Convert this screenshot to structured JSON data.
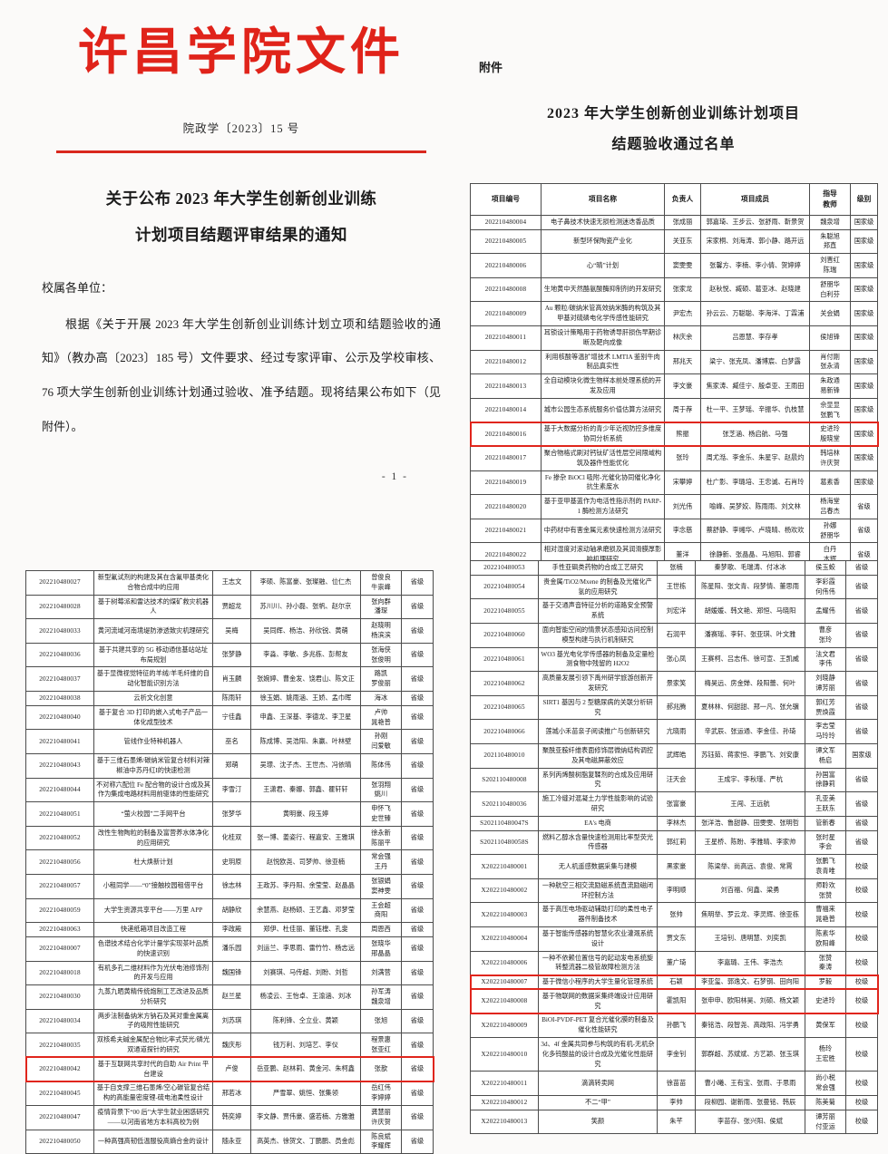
{
  "page1": {
    "brand": "许昌学院文件",
    "doc_number": "院政学〔2023〕15 号",
    "title_line1": "关于公布 2023 年大学生创新创业训练",
    "title_line2": "计划项目结题评审结果的通知",
    "salutation": "校属各单位：",
    "body": "根据《关于开展 2023 年大学生创新创业训练计划立项和结题验收的通知》（教办高〔2023〕185 号）文件要求、经过专家评审、公示及学校审核、76 项大学生创新创业训练计划通过验收、准予结题。现将结果公布如下（见附件）。",
    "page_number": "- 1 -"
  },
  "page2": {
    "attach_label": "附件",
    "title_line1": "2023 年大学生创新创业训练计划项目",
    "title_line2": "结题验收通过名单",
    "columns": {
      "id": "项目编号",
      "name": "项目名称",
      "leader": "负责人",
      "members": "项目成员",
      "teacher": "指导\n教师",
      "level": "级别"
    },
    "rows": [
      {
        "id": "202210480004",
        "name": "电子鼻技术快速无损检测迷迭香品质",
        "leader": "张成丽",
        "members": "郭嘉琦、王步云、张舒雨、靳景贺",
        "teacher": "魏泉增",
        "level": "国家级"
      },
      {
        "id": "202210480005",
        "name": "新型环保陶瓷产业化",
        "leader": "关亚东",
        "members": "宋家桐、刘海涛、郭小静、路开远",
        "teacher": "朱聪旭\n郑直",
        "level": "国家级"
      },
      {
        "id": "202210480006",
        "name": "心“晴”计划",
        "leader": "窦雯雯",
        "members": "张馨方、李楠、李小倩、贺婷婷",
        "teacher": "刘晋红\n陈瑞",
        "level": "国家级"
      },
      {
        "id": "202210480008",
        "name": "生地黄中天然酪氨酸酶抑制剂的开发研究",
        "leader": "张家龙",
        "members": "赵秋悦、臧硕、葛亚冰、赵晓建",
        "teacher": "舒朋华\n白利芬",
        "level": "国家级"
      },
      {
        "id": "202210480009",
        "name": "Au 颗粒/碳纳米管高效纳米酶的构筑及其甲基对硫磷电化学传感性能研究",
        "leader": "尹宏杰",
        "members": "孙云云、万聪聪、李海洋、丁霖浦",
        "teacher": "关会娟",
        "level": "国家级"
      },
      {
        "id": "202210480011",
        "name": "耳锁设计策略用于药物诱导肝损伤早期诊断及靶向成像",
        "leader": "林庆余",
        "members": "吕恩慧、李存孝",
        "teacher": "侯旭锋",
        "level": "国家级"
      },
      {
        "id": "202210480012",
        "name": "利用核酸等温扩增技术 LMTIA 鉴别牛肉制品真实性",
        "leader": "邢兆天",
        "members": "梁宁、张克凤、潘博宸、白梦露",
        "teacher": "肖付刚\n张永清",
        "level": "国家级"
      },
      {
        "id": "202210480013",
        "name": "全自动模块化微生物样本前处理系统的开发及应用",
        "leader": "李文豪",
        "members": "焦家涛、臧佳宁、殷卓亚、王雨田",
        "teacher": "朱政通\n易新锋",
        "level": "国家级"
      },
      {
        "id": "202210480014",
        "name": "城市公园生态系统服务价值估算方法研究",
        "leader": "周于荐",
        "members": "杜一平、王梦瑶、辛振华、仇枝慧",
        "teacher": "佘显显\n张鹏飞",
        "level": "国家级"
      },
      {
        "id": "202210480016",
        "name": "基于大数据分析的青少年近视防控多维度协同分析系统",
        "leader": "熊振",
        "members": "张芝涵、杨启航、马强",
        "teacher": "史进玲\n殷晓堂",
        "level": "国家级",
        "highlight": true
      },
      {
        "id": "202210480017",
        "name": "聚合物格式刷对钙钛矿活性层空间限域构筑及器件性能优化",
        "leader": "张玲",
        "members": "周尤湉、李金乐、朱星宇、赵晨灼",
        "teacher": "韩培林\n许庆贺",
        "level": "国家级"
      },
      {
        "id": "202210480019",
        "name": "Fe 掺杂 BiOCl 吸附-光催化协同催化净化抗生素废水",
        "leader": "宋攀婷",
        "members": "杜广影、李璐培、王忠诚、石肖玲",
        "teacher": "葛素香",
        "level": "国家级"
      },
      {
        "id": "202210480020",
        "name": "基于亚甲基蓝作为电活性指示剂的 PARP-1 酶检测方法研究",
        "leader": "刘光伟",
        "members": "喻峰、吴梦姣、陈雨雨、刘文林",
        "teacher": "杨海堂\n吕春杰",
        "level": "省级"
      },
      {
        "id": "202210480021",
        "name": "中药材中有害金属元素快速检测方法研究",
        "leader": "李念慈",
        "members": "蔡舒静、李缃华、卢晓晴、杨欢欢",
        "teacher": "孙娜\n舒朋华",
        "level": "省级"
      },
      {
        "id": "202210480022",
        "name": "相对湿度对滚动轴承磨损及其润滑膜厚影响机理研究",
        "leader": "董洋",
        "members": "徐静新、张晶晶、马旭阳、郭睿",
        "teacher": "白丹\n本辉",
        "level": "省级"
      },
      {
        "id": "202210480023",
        "name": "一种具有联网大数据分析功能的智慧井盖",
        "leader": "沈自豪",
        "members": "张凯洋、张权、贾义东、刘笑岩",
        "teacher": "高画\n侯光熙",
        "level": "省级"
      },
      {
        "id": "202210480026",
        "name": "内建电场作用下的二维异质结复合材料构筑及对多硫化锂吸附-催化作用研究",
        "leader": "尹佳珂",
        "members": "闫永博、魏佳慧、孙朗、杨佳瑶",
        "teacher": "李浩",
        "level": "省级"
      }
    ]
  },
  "page3": {
    "rows": [
      {
        "id": "202210480027",
        "name": "新型氟试剂的构建及其在含氟甲基类化合物合成中的应用",
        "leader": "王志文",
        "members": "李硕、陈富豪、张璨融、位仁杰",
        "teacher": "曾俊良\n牛崇峰",
        "level": "省级"
      },
      {
        "id": "202210480028",
        "name": "基于树莓派和雷达技术的煤矿救灾机器人",
        "leader": "贾超龙",
        "members": "苏川川、孙小磊、张帆、赵尔京",
        "teacher": "张向群\n潘琛",
        "level": "省级"
      },
      {
        "id": "202210480033",
        "name": "黄河流域河南境堤防渗透致灾机理研究",
        "leader": "吴梅",
        "members": "吴同辉、杨洁、孙欣锐、黄萌",
        "teacher": "赵晓明\n杨滨滨",
        "level": "省级"
      },
      {
        "id": "202210480036",
        "name": "基于共建共享的 5G 移动通信基站站址布局规划",
        "leader": "张梦静",
        "members": "李淼、李敏、多兆栋、彭帮友",
        "teacher": "张海侠\n张俊明",
        "level": "省级"
      },
      {
        "id": "202210480037",
        "name": "基于显微视觉特征的羊绒/羊毛纤维的自动化智能识别方法",
        "leader": "肖玉麟",
        "members": "张婉婷、曹金发、饶君山、陈文正",
        "teacher": "路凯\n罗俊丽",
        "level": "省级"
      },
      {
        "id": "202210480038",
        "name": "云析文化创意",
        "leader": "陈雨轩",
        "members": "徐玉娟、姚雨涵、王娇、孟巾晖",
        "teacher": "海冰",
        "level": "省级"
      },
      {
        "id": "202210480040",
        "name": "基于复合 3D 打印的嵌入式电子产品一体化成型技术",
        "leader": "宁佳鑫",
        "members": "申鑫、王深基、李德龙、李卫星",
        "teacher": "卢帅\n晁艳普",
        "level": "省级"
      },
      {
        "id": "202210480041",
        "name": "管线作业特种机器人",
        "leader": "巫名",
        "members": "陈成博、吴浩阳、朱赢、叶林壁",
        "teacher": "孙刚\n闫爱敏",
        "level": "省级"
      },
      {
        "id": "202210480043",
        "name": "基于三维石墨烯/碳纳米管复合材料对辣椒油中苏丹红I的快速检测",
        "leader": "郑萌",
        "members": "吴璟、沈子杰、王世杰、冯依晴",
        "teacher": "陈体伟",
        "level": "省级"
      },
      {
        "id": "202210480044",
        "name": "不对称六配位 Fe 配合物的设计合成及其作为集成电路材料用前驱体的性能研究",
        "leader": "李雪汀",
        "members": "王潇君、秦娜、郭鑫、瞿轩轩",
        "teacher": "张羽翔\n姚川",
        "level": "省级"
      },
      {
        "id": "202210480051",
        "name": "“萤火校园”二手网平台",
        "leader": "张梦华",
        "members": "黄明豪、段玉婷",
        "teacher": "申怀飞\n史世臻",
        "level": "省级"
      },
      {
        "id": "202210480052",
        "name": "改性生物陶粒的制备及富营养水体净化的应用研究",
        "leader": "化桂双",
        "members": "张一博、姜姿行、程嘉安、王雅琪",
        "teacher": "徐永新\n陈丽平",
        "level": "省级"
      },
      {
        "id": "202210480056",
        "name": "杜大焕新计划",
        "leader": "史玥原",
        "members": "赵悦欧尧、司梦帅、徐亚楠",
        "teacher": "常会强\n王丹",
        "level": "省级"
      },
      {
        "id": "202210480057",
        "name": "小租同学——“0”接触校园租借平台",
        "leader": "徐志林",
        "members": "王政苏、李丹阳、余莹莹、赵晶晶",
        "teacher": "张银娟\n窦神雯",
        "level": "省级"
      },
      {
        "id": "202210480059",
        "name": "大学生资源共享平台——万里 APP",
        "leader": "胡静欣",
        "members": "余慧燕、赵杨硕、王艺鑫、邓梦莹",
        "teacher": "王会超\n商阳",
        "level": "省级"
      },
      {
        "id": "202210480063",
        "name": "快递纸箱项目改造工程",
        "leader": "李政殿",
        "members": "郑伊、杜佳丽、董钰樘、孔斐",
        "teacher": "周恩西",
        "level": "省级"
      },
      {
        "id": "202210480007",
        "name": "色谱技术结合化学计量学实现茶叶品质的快速识别",
        "leader": "潘乐园",
        "members": "刘运兰、李思雨、雷竹竹、杨志远",
        "teacher": "张晓华\n邢晶晶",
        "level": "省级"
      },
      {
        "id": "202210480018",
        "name": "有机多孔二维材料作为光伏电池修饰剂的开发与应用",
        "leader": "魏国锋",
        "members": "刘赛琪、马传超、刘盼、刘哲",
        "teacher": "刘满营",
        "level": "省级"
      },
      {
        "id": "202210480030",
        "name": "九蒸九晒黄精传统炮制工艺改进及品质分析研究",
        "leader": "赵兰星",
        "members": "杨凌云、王怡卓、王渝涵、刘冰",
        "teacher": "孙军涛\n魏泉增",
        "level": "省级"
      },
      {
        "id": "202210480034",
        "name": "两步法制备纳米方钠石及其对重金属离子的吸附性能研究",
        "leader": "刘苏琪",
        "members": "陈利锋、仝立业、黄颖",
        "teacher": "张旭",
        "level": "省级"
      },
      {
        "id": "202210480035",
        "name": "双核希夫碱金属配合物比率式荧光/磷光双通道探针的研究",
        "leader": "魏庆彤",
        "members": "钱万利、刘培艺、李仪",
        "teacher": "程景惠\n张亚红",
        "level": "省级"
      },
      {
        "id": "202210480042",
        "name": "基于互联网共享时代的自助 Air Print 平台建设",
        "leader": "卢俊",
        "members": "岳亚鹏、赵林莉、黄金河、朱柯鑫",
        "teacher": "张歆",
        "level": "省级",
        "highlight": true
      },
      {
        "id": "202210480045",
        "name": "基于自支撑三维石墨烯/空心碳管复合结构的高能量密度锂-硫电池柔性设计",
        "leader": "邢若冰",
        "members": "严雪翠、姚恒、张集领",
        "teacher": "岳红伟\n李婷婷",
        "level": "省级"
      },
      {
        "id": "202210480047",
        "name": "疫情背景下“00 后”大学生就业困惑研究——以河南省地方本科高校为例",
        "leader": "韩奕婷",
        "members": "李文静、贾伟豪、盛若楠、方雅雅",
        "teacher": "龚慧丽\n许庆贺",
        "level": "省级"
      },
      {
        "id": "202210480050",
        "name": "一种高强高韧低温服役高熵合金的设计",
        "leader": "随永亚",
        "members": "高英杰、徐贺文、丁鹏鹏、员金彪",
        "teacher": "陈良斌\n李耀辉",
        "level": "省级"
      }
    ]
  },
  "page4": {
    "rows": [
      {
        "id": "202210480053",
        "name": "手性亚砜类药物的合成工艺研究",
        "leader": "张楠",
        "members": "秦梦歌、毛瑞涛、付冰冰",
        "teacher": "侯玉蛟",
        "level": "省级"
      },
      {
        "id": "202210480054",
        "name": "贵金属/TiO2/Mxene 的制备及光催化产氢的应用研究",
        "leader": "王世栋",
        "members": "陈星阳、张文青、段梦情、董思雨",
        "teacher": "李彩霞\n何伟伟",
        "level": "省级"
      },
      {
        "id": "202210480055",
        "name": "基于交通声音特征分析的道路安全预警系统",
        "leader": "刘宏洋",
        "members": "胡媛媛、韩文艳、郑恒、马晓阳",
        "teacher": "孟耀伟",
        "level": "省级"
      },
      {
        "id": "202210480060",
        "name": "面向智能空间的情景状态感知访问控制模型构建与执行机制研究",
        "leader": "石润平",
        "members": "潘赛瑶、李轩、张亚琪、叶文雅",
        "teacher": "曹彦\n张玲",
        "level": "省级"
      },
      {
        "id": "202210480061",
        "name": "WO3 基光电化学传感器的制备及定量检测食物中残留的 H2O2",
        "leader": "张心凤",
        "members": "王赛柯、吕志伟、徐可宣、王凯威",
        "teacher": "法文君\n李伟",
        "level": "省级"
      },
      {
        "id": "202210480062",
        "name": "高质量发展引领下禹州研学旅游创新开发研究",
        "leader": "景家笑",
        "members": "梅昊远、房金婵、段阳蕾、何叶",
        "teacher": "刘晓静\n谭芳丽",
        "level": "省级"
      },
      {
        "id": "202210480065",
        "name": "SIRT1 基因与 2 型糖尿病的关联分析研究",
        "leader": "郝兆腾",
        "members": "夏林林、何甜甜、邢一凡、张允骥",
        "teacher": "郭红芳\n贾焕霞",
        "level": "省级"
      },
      {
        "id": "202210480066",
        "name": "莲城小禾苗亲子阅读推广与创新研究",
        "leader": "亢晓雨",
        "members": "辛武辰、张运通、李金佳、孙琦",
        "teacher": "李志莹\n马玲玲",
        "level": "省级"
      },
      {
        "id": "202110480010",
        "name": "聚酰亚胺纤维表面修饰层微纳结构调控及其电磁屏蔽效应",
        "leader": "武辉皓",
        "members": "苏钰茹、蒋家恒、李鹏飞、刘安康",
        "teacher": "谭文军\n杨启",
        "level": "国家级"
      },
      {
        "id": "S202110480008",
        "name": "系列丙烯酸树脂复鞣剂的合成及应用研究",
        "leader": "汪天会",
        "members": "王成宇、李秋瑾、严杭",
        "teacher": "孙国富\n徐静莉",
        "level": "省级"
      },
      {
        "id": "S202110480036",
        "name": "施工冷缝对混凝土力学性能影响的试验研究",
        "leader": "张富豪",
        "members": "王闯、王远航",
        "teacher": "孔亚美\n王跃东",
        "level": "省级"
      },
      {
        "id": "S202110480047S",
        "name": "EA's 电商",
        "leader": "李林杰",
        "members": "张洋浩、鲁甜静、田雯雯、张明哲",
        "teacher": "管新春",
        "level": "省级"
      },
      {
        "id": "S202110480058S",
        "name": "燃料乙醇水含量快速检测用比率型荧光传感器",
        "leader": "郭红莉",
        "members": "王星桥、陈盼、李雅晴、李家帅",
        "teacher": "张时星\n李会",
        "level": "省级"
      },
      {
        "id": "X202210480001",
        "name": "无人机遥感数据采集与建模",
        "leader": "黑家豪",
        "members": "陈梁举、尚高远、袁俊、常霄",
        "teacher": "张鹏飞\n袁青唯",
        "level": "校级"
      },
      {
        "id": "X202210480002",
        "name": "一种航空三相交流励磁系统直流励磁闭环控制方法",
        "leader": "李明顺",
        "members": "刘百福、何鑫、梁勇",
        "teacher": "师聆欢\n张赞",
        "level": "校级"
      },
      {
        "id": "X202210480003",
        "name": "基于高压电场驱动辅助打印的柔性电子器件制备技术",
        "leader": "张帅",
        "members": "焦明举、罗云龙、李灵辉、徐亚栋",
        "teacher": "曹福来\n晁艳普",
        "level": "校级"
      },
      {
        "id": "X202210480004",
        "name": "基于智能传感器的智慧化农业灌溉系统设计",
        "leader": "贾文东",
        "members": "王培钊、唐明慧、刘奕凯",
        "teacher": "陈素华\n欧阳峰",
        "level": "校级"
      },
      {
        "id": "X202210480006",
        "name": "一种不依赖位置信号的起动发电系统旋转整流器二极管故障检测方法",
        "leader": "董广琦",
        "members": "李嘉璐、王伟、李浩杰",
        "teacher": "张赞\n秦涛",
        "level": "校级"
      },
      {
        "id": "X202210480007",
        "name": "基于微信小程序的大学生量化管理系统",
        "leader": "石颖",
        "members": "李亚玺、郭逸文、石梦钢、田向阳",
        "teacher": "罗毅",
        "level": "校级",
        "highlight": true
      },
      {
        "id": "X202210480008",
        "name": "基于物联网的数据采集终端设计应用研究",
        "leader": "霍凯阳",
        "members": "张申申、欧阳林昊、刘硕、杨文颖",
        "teacher": "史进玲",
        "level": "校级",
        "highlight": true
      },
      {
        "id": "X202210480009",
        "name": "BiOI-PVDF-PET 复合光催化膜的制备及催化性能研究",
        "leader": "孙鹏飞",
        "members": "秦铭浩、段智尧、高政阳、冯学勇",
        "teacher": "黄保军",
        "level": "校级"
      },
      {
        "id": "X202210480010",
        "name": "3d、4f 金属共同参与构筑的有机-无机杂化多钨酸盐的设计合成及光催化性能研究",
        "leader": "李金钊",
        "members": "郭群超、苏斌斌、方艺颖、张玉琪",
        "teacher": "杨玲\n王宏胜",
        "level": "校级"
      },
      {
        "id": "X202210480011",
        "name": "滴滴转卖网",
        "leader": "徐苗苗",
        "members": "曹小曦、王有宝、张雨、于思雨",
        "teacher": "尚小税\n常会强",
        "level": "校级"
      },
      {
        "id": "X202210480012",
        "name": "不二“甲”",
        "leader": "李帅",
        "members": "段柳园、谢新雨、张曼铭、韩辰",
        "teacher": "陈美菊",
        "level": "校级"
      },
      {
        "id": "X202210480013",
        "name": "笑颜",
        "leader": "朱芊",
        "members": "李苗存、张兴阳、侯斌",
        "teacher": "谭芳丽\n付亚运",
        "level": "校级"
      }
    ]
  }
}
